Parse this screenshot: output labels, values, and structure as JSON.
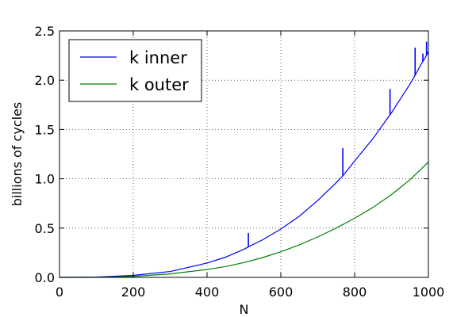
{
  "chart_data": {
    "type": "line",
    "title": "",
    "xlabel": "N",
    "ylabel": "billions of cycles",
    "xlim": [
      0,
      1000
    ],
    "ylim": [
      0,
      2.5
    ],
    "xticks": [
      0,
      200,
      400,
      600,
      800,
      1000
    ],
    "xtick_labels": [
      "0",
      "200",
      "400",
      "600",
      "800",
      "1000"
    ],
    "yticks": [
      0.0,
      0.5,
      1.0,
      1.5,
      2.0,
      2.5
    ],
    "ytick_labels": [
      "0.0",
      "0.5",
      "1.0",
      "1.5",
      "2.0",
      "2.5"
    ],
    "grid": true,
    "legend_position": "top-left",
    "series": [
      {
        "name": "k inner",
        "color": "#0000ff",
        "x": [
          0,
          100,
          200,
          300,
          400,
          450,
          500,
          512,
          550,
          600,
          650,
          700,
          750,
          768,
          800,
          850,
          896,
          900,
          950,
          964,
          980,
          990,
          1000
        ],
        "y": [
          0.0,
          0.003,
          0.02,
          0.06,
          0.145,
          0.205,
          0.285,
          0.31,
          0.38,
          0.49,
          0.62,
          0.78,
          0.96,
          1.03,
          1.18,
          1.41,
          1.65,
          1.67,
          1.96,
          2.05,
          2.16,
          2.22,
          2.29
        ],
        "spikes": [
          {
            "x": 512,
            "y": 0.45
          },
          {
            "x": 768,
            "y": 1.31
          },
          {
            "x": 896,
            "y": 1.91
          },
          {
            "x": 964,
            "y": 2.33
          },
          {
            "x": 985,
            "y": 2.27
          },
          {
            "x": 995,
            "y": 2.39
          }
        ]
      },
      {
        "name": "k outer",
        "color": "#008000",
        "x": [
          0,
          100,
          200,
          300,
          400,
          450,
          500,
          550,
          600,
          650,
          700,
          750,
          800,
          850,
          900,
          950,
          1000
        ],
        "y": [
          0.0,
          0.001,
          0.01,
          0.035,
          0.08,
          0.11,
          0.15,
          0.2,
          0.26,
          0.33,
          0.41,
          0.5,
          0.6,
          0.71,
          0.84,
          0.99,
          1.17
        ],
        "spikes": []
      }
    ]
  }
}
